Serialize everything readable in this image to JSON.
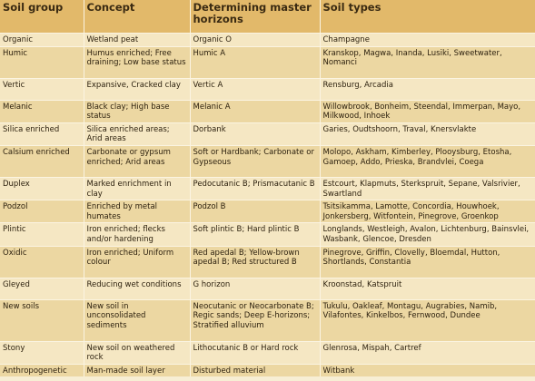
{
  "headers": {
    "soil_group": "Soil group",
    "concept": "Concept",
    "master_horizons": "Determining master horizons",
    "soil_types": "Soil types"
  },
  "rows": [
    {
      "group": "Organic",
      "concept": "Wetland peat",
      "horizons": "Organic O",
      "types": "Champagne"
    },
    {
      "group": "Humic",
      "concept": "Humus enriched; Free draining; Low base status",
      "horizons": "Humic A",
      "types": "Kranskop, Magwa, Inanda, Lusiki, Sweetwater, Nomanci"
    },
    {
      "group": "Vertic",
      "concept": "Expansive, Cracked clay",
      "horizons": "Vertic A",
      "types": "Rensburg, Arcadia"
    },
    {
      "group": "Melanic",
      "concept": "Black clay; High base status",
      "horizons": "Melanic A",
      "types": "Willowbrook, Bonheim, Steendal, Immerpan, Mayo, Milkwood, Inhoek"
    },
    {
      "group": "Silica enriched",
      "concept": "Silica enriched areas; Arid areas",
      "horizons": "Dorbank",
      "types": "Garies, Oudtshoorn, Traval, Knersvlakte"
    },
    {
      "group": "Calsium enriched",
      "concept": "Carbonate or gypsum enriched; Arid areas",
      "horizons": "Soft or Hardbank; Carbonate or Gypseous",
      "types": "Molopo, Askham, Kimberley, Plooysburg, Etosha, Gamoep, Addo, Prieska, Brandvlei, Coega"
    },
    {
      "group": "Duplex",
      "concept": "Marked enrichment in clay",
      "horizons": "Pedocutanic B; Prismacutanic B",
      "types": "Estcourt, Klapmuts, Sterkspruit, Sepane, Valsrivier, Swartland"
    },
    {
      "group": "Podzol",
      "concept": "Enriched by metal humates",
      "horizons": "Podzol B",
      "types": "Tsitsikamma, Lamotte, Concordia, Houwhoek, Jonkersberg, Witfontein, Pinegrove, Groenkop"
    },
    {
      "group": "Plintic",
      "concept": "Iron enriched; flecks and/or hardening",
      "horizons": "Soft plintic B; Hard plintic B",
      "types": "Longlands, Westleigh, Avalon, Lichtenburg, Bainsvlei, Wasbank, Glencoe, Dresden"
    },
    {
      "group": "Oxidic",
      "concept": "Iron enriched; Uniform colour",
      "horizons": "Red apedal B; Yellow-brown apedal B; Red structured B",
      "types": "Pinegrove, Griffin, Clovelly, Bloemdal, Hutton, Shortlands, Constantia"
    },
    {
      "group": "Gleyed",
      "concept": "Reducing wet conditions",
      "horizons": "G horizon",
      "types": "Kroonstad, Katspruit"
    },
    {
      "group": "New soils",
      "concept": "New soil in unconsolidated sediments",
      "horizons": "Neocutanic or Neocarbonate B; Regic sands; Deep E-horizons; Stratified alluvium",
      "types": "Tukulu, Oakleaf, Montagu, Augrabies, Namib, Vilafontes, Kinkelbos, Fernwood, Dundee"
    },
    {
      "group": "Stony",
      "concept": "New soil on weathered rock",
      "horizons": "Lithocutanic B or Hard rock",
      "types": "Glenrosa, Mispah, Cartref"
    },
    {
      "group": "Anthropogenetic",
      "concept": "Man-made soil layer",
      "horizons": "Disturbed material",
      "types": "Witbank"
    }
  ]
}
